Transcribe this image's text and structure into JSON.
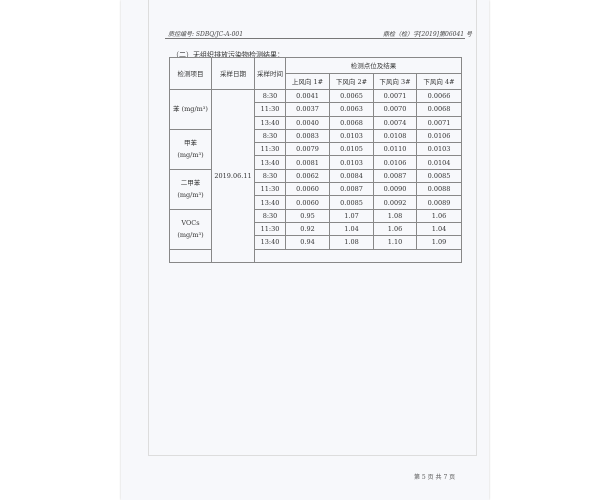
{
  "header": {
    "left": "质控编号: SDBQ/JC-A-001",
    "right": "鼎检（检）字[2019]第06041 号"
  },
  "section_title": "（二）无组织排放污染物检测结果：",
  "table": {
    "col_item": "检测项目",
    "col_date": "采样日期",
    "col_time": "采样时间",
    "col_group": "检测点位及结果",
    "points": [
      "上风向 1#",
      "下风向 2#",
      "下风向 3#",
      "下风向 4#"
    ],
    "date": "2019.06.11",
    "groups": [
      {
        "item": "苯 (mg/m³)",
        "rows": [
          [
            "8:30",
            "0.0041",
            "0.0065",
            "0.0071",
            "0.0066"
          ],
          [
            "11:30",
            "0.0037",
            "0.0063",
            "0.0070",
            "0.0068"
          ],
          [
            "13:40",
            "0.0040",
            "0.0068",
            "0.0074",
            "0.0071"
          ]
        ]
      },
      {
        "item": "甲苯 (mg/m³)",
        "rows": [
          [
            "8:30",
            "0.0083",
            "0.0103",
            "0.0108",
            "0.0106"
          ],
          [
            "11:30",
            "0.0079",
            "0.0105",
            "0.0110",
            "0.0103"
          ],
          [
            "13:40",
            "0.0081",
            "0.0103",
            "0.0106",
            "0.0104"
          ]
        ]
      },
      {
        "item": "二甲苯 (mg/m³)",
        "rows": [
          [
            "8:30",
            "0.0062",
            "0.0084",
            "0.0087",
            "0.0085"
          ],
          [
            "11:30",
            "0.0060",
            "0.0087",
            "0.0090",
            "0.0088"
          ],
          [
            "13:40",
            "0.0060",
            "0.0085",
            "0.0092",
            "0.0089"
          ]
        ]
      },
      {
        "item": "VOCs (mg/m³)",
        "rows": [
          [
            "8:30",
            "0.95",
            "1.07",
            "1.08",
            "1.06"
          ],
          [
            "11:30",
            "0.92",
            "1.04",
            "1.06",
            "1.04"
          ],
          [
            "13:40",
            "0.94",
            "1.08",
            "1.10",
            "1.09"
          ]
        ]
      }
    ]
  },
  "footer": "第 5 页  共 7 页"
}
